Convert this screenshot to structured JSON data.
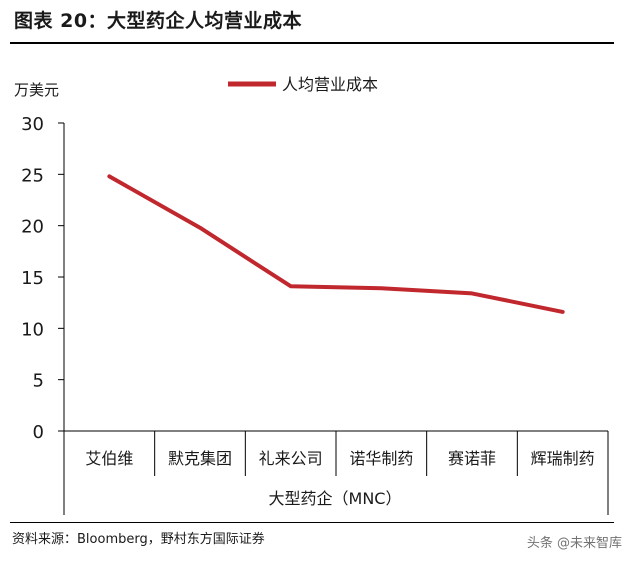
{
  "figure": {
    "title": "图表 20：大型药企人均营业成本",
    "source": "资料来源：Bloomberg，野村东方国际证券",
    "watermark": "头条 @未来智库"
  },
  "chart_data": {
    "type": "line",
    "ylabel": "万美元",
    "xlabel": "大型药企（MNC）",
    "ylim": [
      0,
      30
    ],
    "yticks": [
      0,
      5,
      10,
      15,
      20,
      25,
      30
    ],
    "grid": false,
    "legend_position": "top-center",
    "categories": [
      "艾伯维",
      "默克集团",
      "礼来公司",
      "诺华制药",
      "赛诺菲",
      "辉瑞制药"
    ],
    "series": [
      {
        "name": "人均营业成本",
        "color": "#c0282e",
        "values": [
          24.8,
          19.8,
          14.1,
          13.9,
          13.4,
          11.6
        ]
      }
    ]
  }
}
